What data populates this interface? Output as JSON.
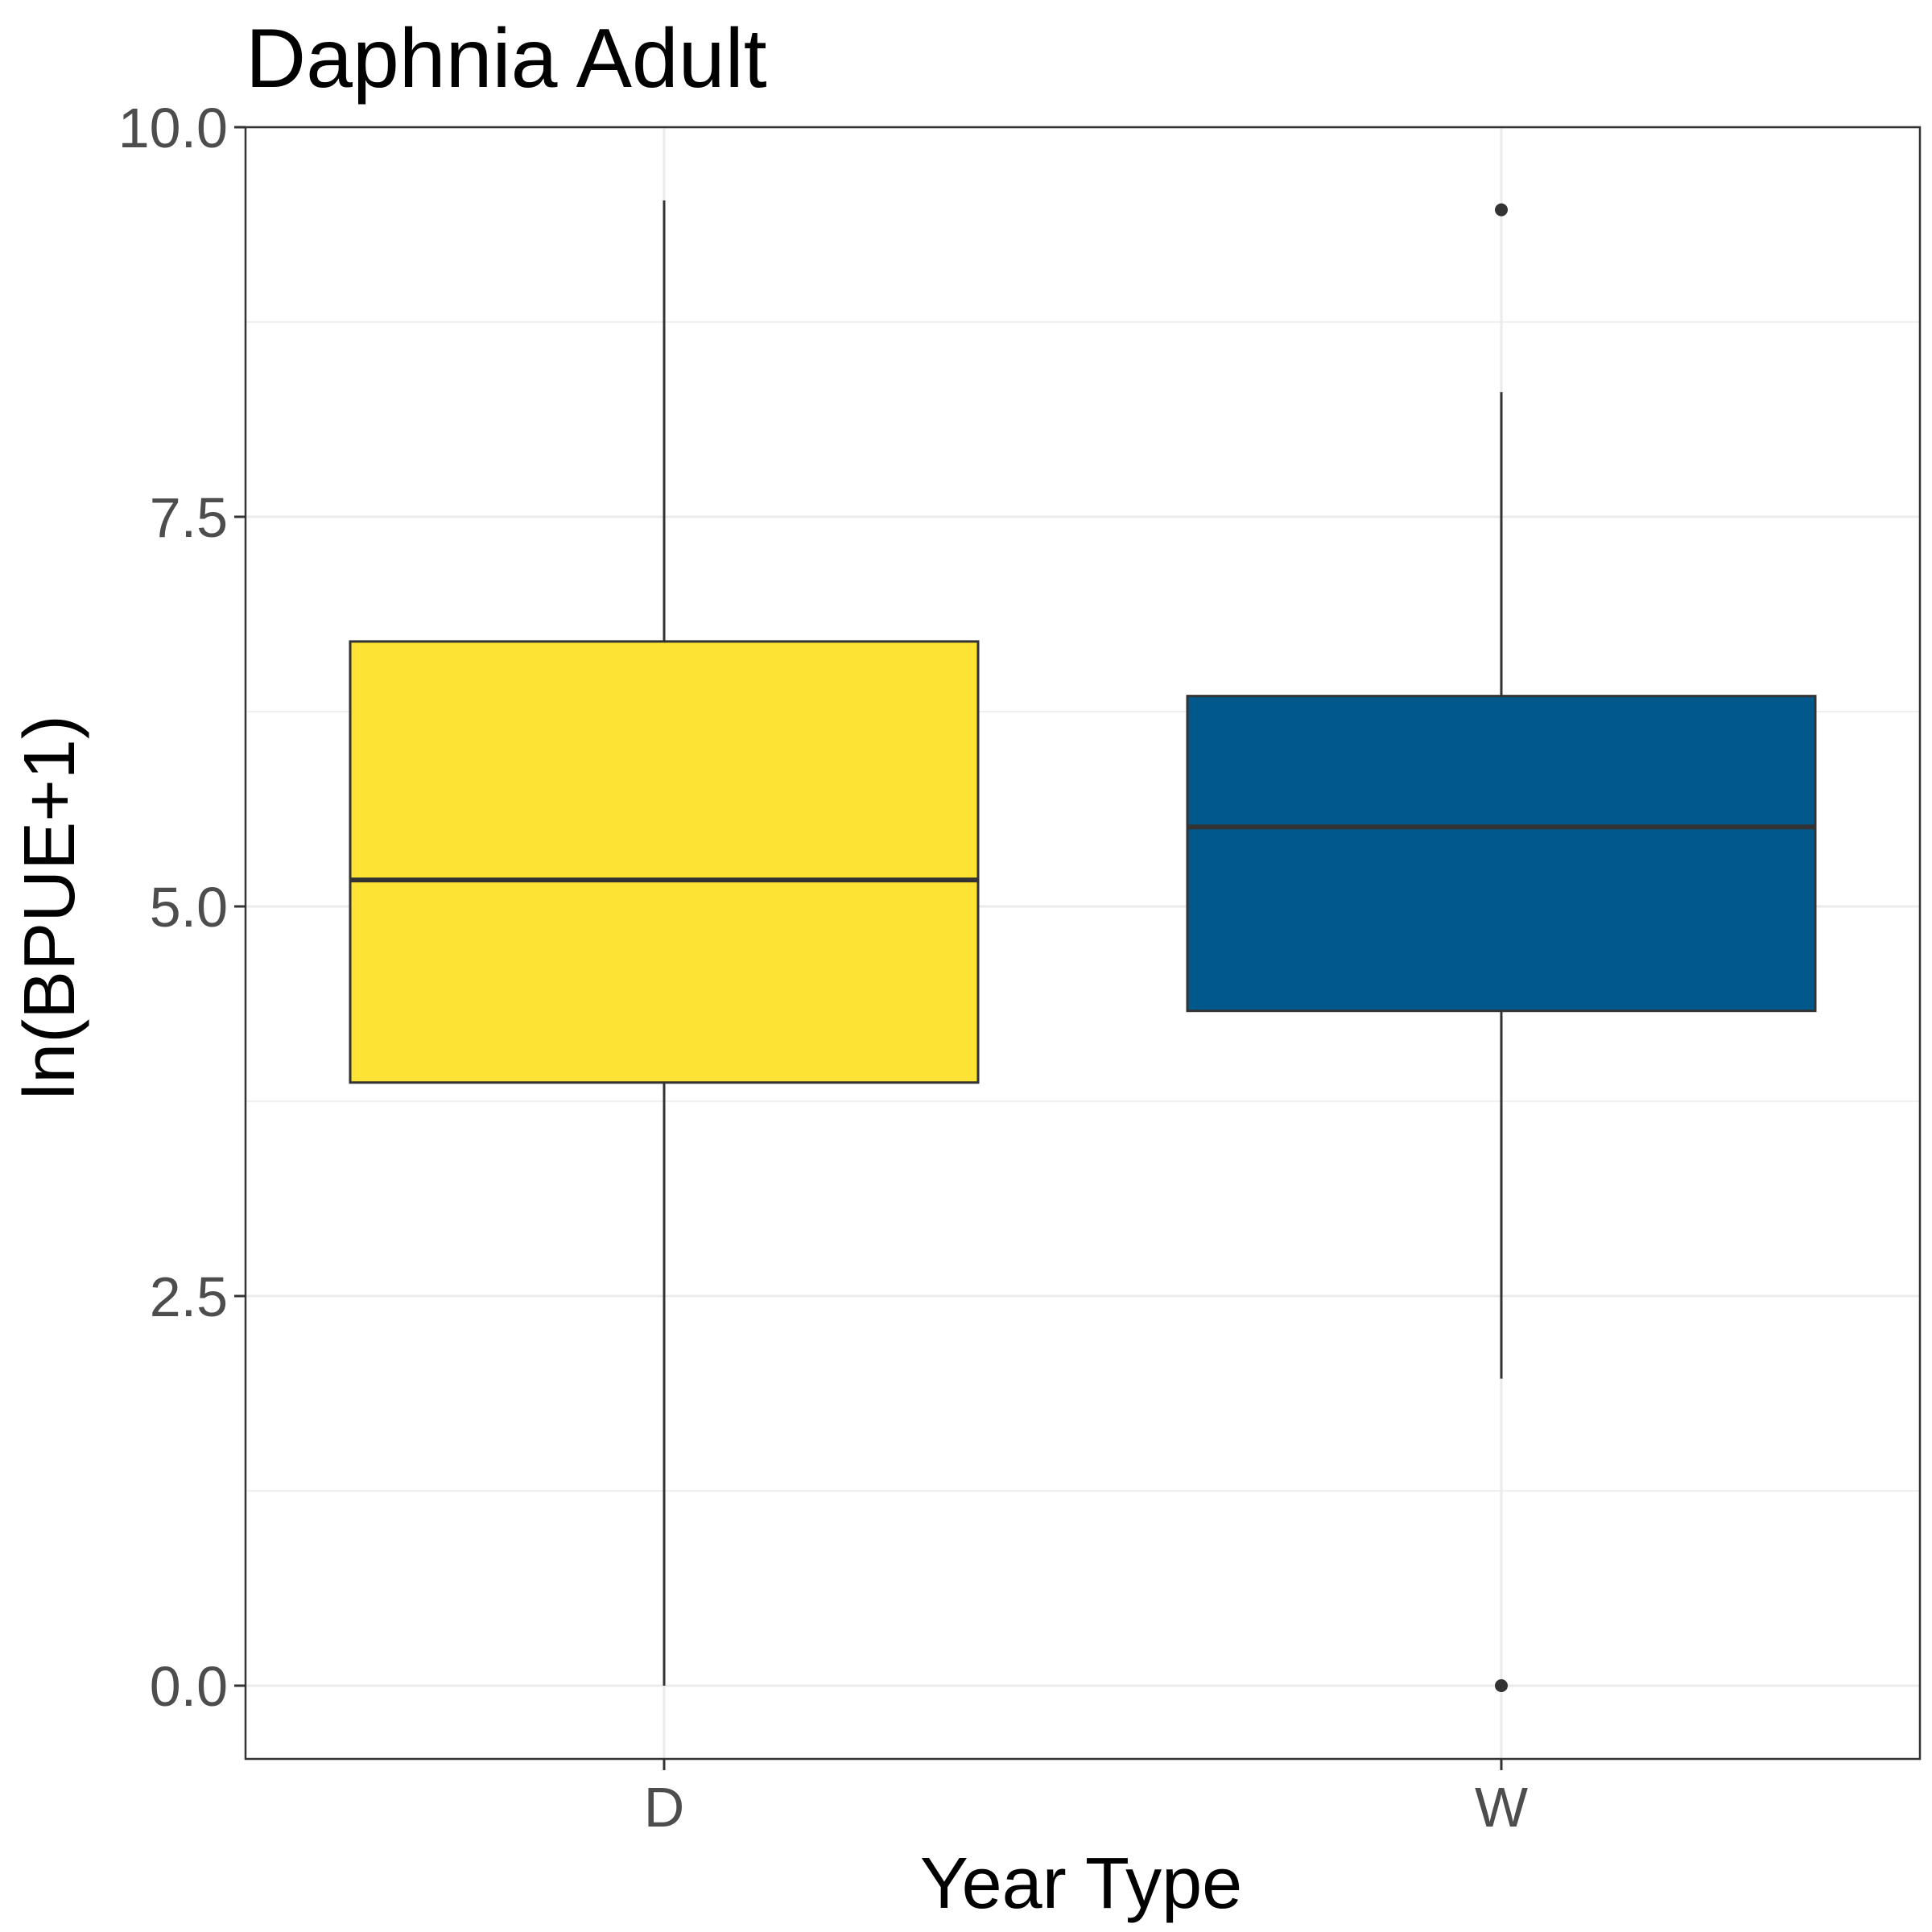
{
  "chart_data": {
    "type": "box",
    "title": "Daphnia Adult",
    "xlabel": "Year Type",
    "ylabel": "ln(BPUE+1)",
    "ylim": [
      -0.47,
      10.0
    ],
    "yticks": [
      "0.0",
      "2.5",
      "5.0",
      "7.5",
      "10.0"
    ],
    "ytick_values": [
      0,
      2.5,
      5,
      7.5,
      10
    ],
    "y_minor_values": [
      1.25,
      3.75,
      6.25,
      8.75
    ],
    "categories": [
      "D",
      "W"
    ],
    "grid": true,
    "legend": "none",
    "series": [
      {
        "category": "D",
        "color": "#fde333",
        "whisker_low": 0.0,
        "q1": 3.87,
        "median": 5.17,
        "q3": 6.7,
        "whisker_high": 9.53,
        "outliers": []
      },
      {
        "category": "W",
        "color": "#00588b",
        "whisker_low": 1.97,
        "q1": 4.33,
        "median": 5.51,
        "q3": 6.35,
        "whisker_high": 8.3,
        "outliers": [
          9.47,
          0.0
        ]
      }
    ]
  }
}
